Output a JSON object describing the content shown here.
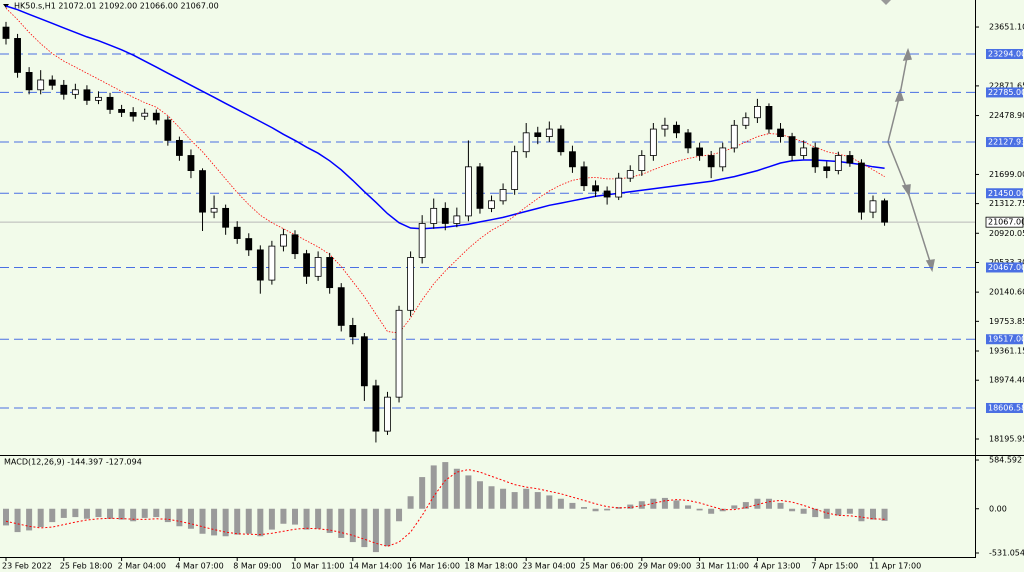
{
  "chart_data": [
    {
      "type": "candlestick",
      "title": "HK50.s,H1  21072.01 21092.00 21066.00 21067.00",
      "color": "#000000",
      "up_fill": "#ffffff",
      "down_fill": "#000000",
      "open": [
        23650,
        23500,
        23050,
        22820,
        22950,
        22880,
        22760,
        22820,
        22680,
        22720,
        22560,
        22520,
        22470,
        22510,
        22420,
        22150,
        21950,
        21750,
        21200,
        21250,
        21000,
        20850,
        20700,
        20300,
        20750,
        20900,
        20650,
        20350,
        20600,
        20200,
        19700,
        19550,
        18900,
        18300,
        18750,
        19900,
        20600,
        21050,
        21250,
        21050,
        21150,
        21800,
        21250,
        21350,
        21500,
        22000,
        22250,
        22200,
        22300,
        22000,
        21800,
        21550,
        21480,
        21400,
        21650,
        21750,
        21950,
        22300,
        22350,
        22250,
        22050,
        21950,
        21800,
        22050,
        22350,
        22450,
        22600,
        22300,
        22200,
        21950,
        22050,
        21800,
        21750,
        21950,
        21850,
        21200,
        21350
      ],
      "high": [
        23720,
        23560,
        23120,
        23080,
        23010,
        22950,
        22900,
        22880,
        22800,
        22780,
        22620,
        22590,
        22570,
        22560,
        22470,
        22200,
        22030,
        21780,
        21420,
        21300,
        21080,
        20920,
        20760,
        20820,
        20980,
        20960,
        20700,
        20680,
        20660,
        20260,
        19800,
        19600,
        18980,
        18820,
        19960,
        20680,
        21160,
        21380,
        21330,
        21260,
        22150,
        21850,
        21420,
        21580,
        22080,
        22380,
        22330,
        22400,
        22350,
        22080,
        21870,
        21620,
        21540,
        21720,
        21820,
        22020,
        22380,
        22450,
        22400,
        22300,
        22120,
        22010,
        22120,
        22420,
        22520,
        22700,
        22640,
        22380,
        22250,
        22150,
        22120,
        21870,
        22000,
        22010,
        21900,
        21420,
        21380
      ],
      "low": [
        23420,
        22980,
        22760,
        22760,
        22820,
        22690,
        22700,
        22620,
        22630,
        22500,
        22460,
        22400,
        22420,
        22360,
        22080,
        21880,
        21650,
        20950,
        21120,
        20900,
        20780,
        20620,
        20120,
        20240,
        20680,
        20580,
        20250,
        20290,
        20120,
        19620,
        19450,
        18700,
        18150,
        18250,
        18680,
        19820,
        20520,
        20980,
        20960,
        21000,
        21080,
        21180,
        21200,
        21300,
        21430,
        21920,
        22100,
        22130,
        21950,
        21720,
        21480,
        21400,
        21300,
        21360,
        21600,
        21680,
        21880,
        22200,
        22180,
        21980,
        21880,
        21650,
        21740,
        21990,
        22300,
        22380,
        22240,
        22120,
        21880,
        21900,
        21720,
        21650,
        21700,
        21800,
        21100,
        21120,
        21020
      ],
      "close": [
        23500,
        23050,
        22820,
        22950,
        22880,
        22760,
        22820,
        22680,
        22720,
        22560,
        22520,
        22470,
        22510,
        22420,
        22150,
        21950,
        21750,
        21200,
        21250,
        21000,
        20850,
        20700,
        20300,
        20750,
        20900,
        20650,
        20350,
        20600,
        20200,
        19700,
        19550,
        18900,
        18300,
        18750,
        19900,
        20600,
        21050,
        21250,
        21050,
        21150,
        21800,
        21250,
        21350,
        21500,
        22000,
        22250,
        22200,
        22300,
        22000,
        21800,
        21550,
        21480,
        21400,
        21650,
        21750,
        21950,
        22300,
        22350,
        22250,
        22050,
        21950,
        21800,
        22050,
        22350,
        22450,
        22600,
        22300,
        22200,
        21950,
        22050,
        21800,
        21750,
        21950,
        21850,
        21200,
        21350,
        21067
      ],
      "ma": [
        {
          "color": "#0000ff",
          "values": [
            23930,
            23880,
            23820,
            23760,
            23700,
            23640,
            23580,
            23520,
            23470,
            23410,
            23350,
            23280,
            23200,
            23120,
            23040,
            22960,
            22880,
            22800,
            22720,
            22640,
            22560,
            22480,
            22400,
            22320,
            22230,
            22150,
            22060,
            21980,
            21880,
            21760,
            21620,
            21470,
            21330,
            21180,
            21060,
            20990,
            20980,
            20990,
            21000,
            21020,
            21040,
            21070,
            21100,
            21130,
            21170,
            21210,
            21250,
            21290,
            21320,
            21350,
            21380,
            21410,
            21430,
            21450,
            21470,
            21490,
            21510,
            21530,
            21550,
            21570,
            21590,
            21610,
            21640,
            21670,
            21710,
            21750,
            21800,
            21850,
            21880,
            21890,
            21890,
            21880,
            21870,
            21850,
            21830,
            21800,
            21780
          ]
        },
        {
          "color": "#ff0000",
          "values": [
            23900,
            23750,
            23580,
            23430,
            23300,
            23200,
            23120,
            23040,
            22960,
            22880,
            22800,
            22720,
            22650,
            22590,
            22480,
            22320,
            22150,
            22000,
            21820,
            21640,
            21460,
            21300,
            21160,
            21060,
            20980,
            20900,
            20820,
            20740,
            20640,
            20480,
            20280,
            20080,
            19850,
            19620,
            19600,
            19800,
            20040,
            20250,
            20420,
            20570,
            20720,
            20850,
            20960,
            21040,
            21150,
            21270,
            21380,
            21480,
            21560,
            21620,
            21650,
            21660,
            21640,
            21640,
            21660,
            21700,
            21760,
            21820,
            21870,
            21910,
            21940,
            21960,
            22000,
            22060,
            22130,
            22200,
            22240,
            22230,
            22180,
            22130,
            22060,
            22000,
            21970,
            21930,
            21850,
            21760,
            21670
          ]
        }
      ],
      "levels": {
        "color": "#4a6fe3",
        "values": [
          23294,
          22785,
          22127.93,
          21450,
          20467,
          19517,
          18606.58
        ],
        "value_labels": [
          "23294.00",
          "22785.00",
          "22127.93",
          "21450.00",
          "20467.00",
          "19517.00",
          "18606.58"
        ]
      },
      "last_price": {
        "value": 21067,
        "label": "21067.00"
      },
      "ylim": [
        17984,
        24009
      ],
      "yticks": [
        {
          "value": 23651.1,
          "label": "23651.10"
        },
        {
          "value": 22871.65,
          "label": "22871.65"
        },
        {
          "value": 22478.9,
          "label": "22478.90"
        },
        {
          "value": 21699,
          "label": "21699.00"
        },
        {
          "value": 21312.75,
          "label": "21312.75"
        },
        {
          "value": 20920.05,
          "label": "20920.05"
        },
        {
          "value": 20533.3,
          "label": "20533.30"
        },
        {
          "value": 20140.6,
          "label": "20140.60"
        },
        {
          "value": 19753.85,
          "label": "19753.85"
        },
        {
          "value": 19361.15,
          "label": "19361.15"
        },
        {
          "value": 18974.4,
          "label": "18974.40"
        },
        {
          "value": 18195.95,
          "label": "18195.95"
        }
      ]
    },
    {
      "type": "bar",
      "title": "MACD(12,26,9) -144.397 -127.094",
      "categories": [
        "23 Feb 2022",
        null,
        null,
        null,
        null,
        "25 Feb 18:00",
        null,
        null,
        null,
        null,
        "2 Mar 04:00",
        null,
        null,
        null,
        null,
        "4 Mar 07:00",
        null,
        null,
        null,
        null,
        "8 Mar 09:00",
        null,
        null,
        null,
        null,
        "10 Mar 11:00",
        null,
        null,
        null,
        null,
        "14 Mar 14:00",
        null,
        null,
        null,
        null,
        "16 Mar 16:00",
        null,
        null,
        null,
        null,
        "18 Mar 18:00",
        null,
        null,
        null,
        null,
        "23 Mar 04:00",
        null,
        null,
        null,
        null,
        "25 Mar 06:00",
        null,
        null,
        null,
        null,
        "29 Mar 09:00",
        null,
        null,
        null,
        null,
        "31 Mar 11:00",
        null,
        null,
        null,
        null,
        "4 Apr 13:00",
        null,
        null,
        null,
        null,
        "7 Apr 15:00",
        null,
        null,
        null,
        null,
        "11 Apr 17:00",
        null
      ],
      "color": "#9a9a9a",
      "values": [
        -200,
        -280,
        -260,
        -220,
        -160,
        -110,
        -100,
        -120,
        -100,
        -120,
        -130,
        -150,
        -110,
        -100,
        -160,
        -210,
        -240,
        -300,
        -320,
        -330,
        -310,
        -300,
        -330,
        -250,
        -180,
        -190,
        -250,
        -240,
        -290,
        -350,
        -400,
        -460,
        -520,
        -450,
        -150,
        150,
        380,
        520,
        560,
        480,
        400,
        330,
        270,
        240,
        200,
        240,
        200,
        160,
        120,
        70,
        20,
        -30,
        -20,
        20,
        50,
        90,
        120,
        130,
        100,
        40,
        -20,
        -60,
        -30,
        40,
        80,
        120,
        120,
        70,
        -30,
        -60,
        -100,
        -120,
        -80,
        -60,
        -150,
        -130,
        -144.397
      ],
      "signal": {
        "color": "#ff0000",
        "values": [
          -150,
          -180,
          -210,
          -230,
          -220,
          -190,
          -160,
          -135,
          -120,
          -115,
          -118,
          -125,
          -128,
          -120,
          -125,
          -150,
          -180,
          -215,
          -250,
          -280,
          -300,
          -305,
          -310,
          -295,
          -270,
          -245,
          -235,
          -240,
          -255,
          -285,
          -320,
          -365,
          -415,
          -450,
          -400,
          -280,
          -80,
          150,
          340,
          440,
          470,
          440,
          390,
          340,
          290,
          260,
          240,
          210,
          180,
          140,
          100,
          60,
          25,
          10,
          15,
          35,
          65,
          95,
          110,
          100,
          70,
          30,
          -10,
          -10,
          15,
          50,
          85,
          100,
          80,
          40,
          -5,
          -50,
          -80,
          -85,
          -100,
          -120,
          -127.094
        ]
      },
      "ylim": [
        -579,
        621
      ],
      "yticks": [
        {
          "value": 584.592,
          "label": "584.592"
        },
        {
          "value": 0,
          "label": "0.00"
        },
        {
          "value": -531.054,
          "label": "-531.054"
        }
      ]
    }
  ]
}
